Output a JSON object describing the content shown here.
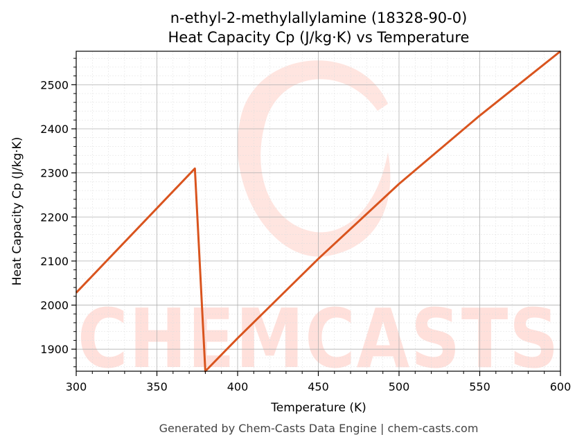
{
  "chart_data": {
    "type": "line",
    "title_line1": "n-ethyl-2-methylallylamine (18328-90-0)",
    "title_line2": "Heat Capacity Cp (J/kg·K) vs Temperature",
    "xlabel": "Temperature (K)",
    "ylabel": "Heat Capacity Cp (J/kg·K)",
    "xlim": [
      300,
      600
    ],
    "ylim": [
      1850,
      2576
    ],
    "xticks": [
      300,
      350,
      400,
      450,
      500,
      550,
      600
    ],
    "yticks": [
      1900,
      2000,
      2100,
      2200,
      2300,
      2400,
      2500
    ],
    "grid": true,
    "line_color": "#d9541e",
    "series": [
      {
        "x": [
          300,
          373.5,
          380,
          400,
          450,
          500,
          550,
          600
        ],
        "y": [
          2028,
          2310,
          1850,
          1925,
          2105,
          2275,
          2430,
          2576
        ]
      }
    ]
  },
  "watermark": {
    "text": "CHEMCASTS",
    "color": "#ffe0db"
  },
  "footer": "Generated by Chem-Casts Data Engine | chem-casts.com"
}
